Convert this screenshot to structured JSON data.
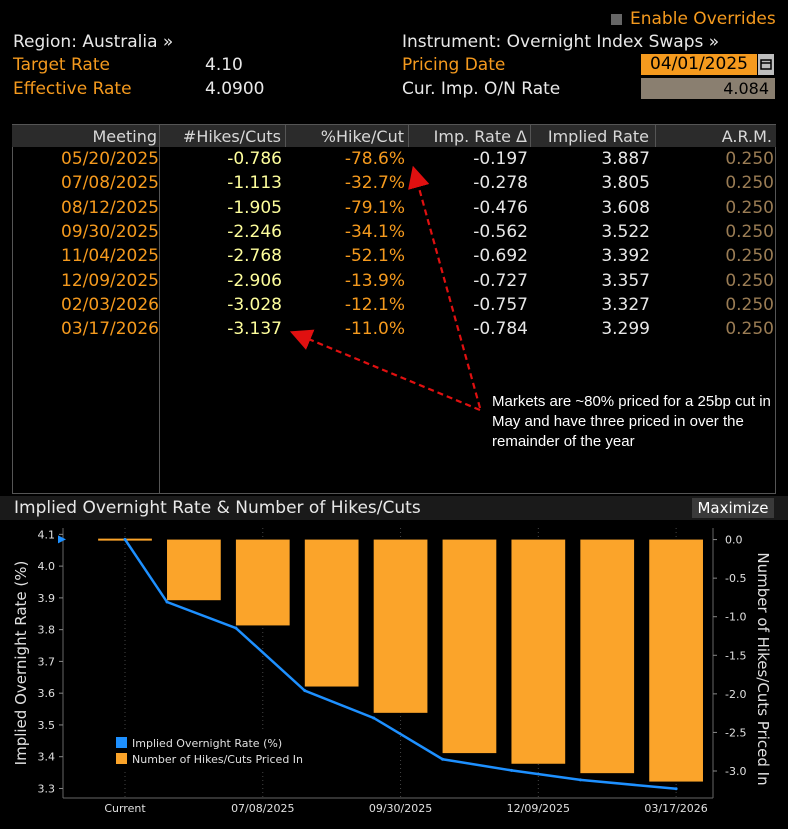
{
  "overrides": {
    "label": "Enable Overrides"
  },
  "region": {
    "label": "Region: Australia »"
  },
  "instrument": {
    "label": "Instrument: Overnight Index Swaps »"
  },
  "target_rate": {
    "label": "Target Rate",
    "value": "4.10"
  },
  "effective_rate": {
    "label": "Effective Rate",
    "value": "4.0900"
  },
  "pricing_date": {
    "label": "Pricing Date",
    "value": "04/01/2025"
  },
  "cur_imp": {
    "label": "Cur. Imp. O/N Rate",
    "value": "4.084"
  },
  "table": {
    "headers": [
      "Meeting",
      "#Hikes/Cuts",
      "%Hike/Cut",
      "Imp. Rate Δ",
      "Implied Rate",
      "A.R.M."
    ],
    "rows": [
      {
        "meeting": "05/20/2025",
        "hikes": "-0.786",
        "pct": "-78.6%",
        "delta": "-0.197",
        "implied": "3.887",
        "arm": "0.250"
      },
      {
        "meeting": "07/08/2025",
        "hikes": "-1.113",
        "pct": "-32.7%",
        "delta": "-0.278",
        "implied": "3.805",
        "arm": "0.250"
      },
      {
        "meeting": "08/12/2025",
        "hikes": "-1.905",
        "pct": "-79.1%",
        "delta": "-0.476",
        "implied": "3.608",
        "arm": "0.250"
      },
      {
        "meeting": "09/30/2025",
        "hikes": "-2.246",
        "pct": "-34.1%",
        "delta": "-0.562",
        "implied": "3.522",
        "arm": "0.250"
      },
      {
        "meeting": "11/04/2025",
        "hikes": "-2.768",
        "pct": "-52.1%",
        "delta": "-0.692",
        "implied": "3.392",
        "arm": "0.250"
      },
      {
        "meeting": "12/09/2025",
        "hikes": "-2.906",
        "pct": "-13.9%",
        "delta": "-0.727",
        "implied": "3.357",
        "arm": "0.250"
      },
      {
        "meeting": "02/03/2026",
        "hikes": "-3.028",
        "pct": "-12.1%",
        "delta": "-0.757",
        "implied": "3.327",
        "arm": "0.250"
      },
      {
        "meeting": "03/17/2026",
        "hikes": "-3.137",
        "pct": "-11.0%",
        "delta": "-0.784",
        "implied": "3.299",
        "arm": "0.250"
      }
    ]
  },
  "annotation": {
    "text": "Markets are ~80% priced for a 25bp cut in May and have three priced in over the remainder of the year"
  },
  "chart_section": {
    "title": "Implied Overnight Rate & Number of Hikes/Cuts",
    "maximize_label": "Maximize"
  },
  "colors": {
    "orange": "#f59a1e",
    "bar": "#fba42a",
    "line": "#1e90ff",
    "yellow": "#fefe9c",
    "arrow": "#e01010"
  },
  "chart_data": {
    "type": "bar",
    "categories": [
      "Current",
      "05/20/2025",
      "07/08/2025",
      "08/12/2025",
      "09/30/2025",
      "11/04/2025",
      "12/09/2025",
      "02/03/2026",
      "03/17/2026"
    ],
    "x_tick_labels": [
      "Current",
      "07/08/2025",
      "09/30/2025",
      "12/09/2025",
      "03/17/2026"
    ],
    "series": [
      {
        "name": "Implied Overnight Rate (%)",
        "type": "line",
        "axis": "left",
        "values": [
          4.084,
          3.887,
          3.805,
          3.608,
          3.522,
          3.392,
          3.357,
          3.327,
          3.299
        ]
      },
      {
        "name": "Number of Hikes/Cuts Priced In",
        "type": "bar",
        "axis": "right",
        "values": [
          0,
          -0.786,
          -1.113,
          -1.905,
          -2.246,
          -2.768,
          -2.906,
          -3.028,
          -3.137
        ]
      }
    ],
    "ylabel_left": "Implied Overnight Rate (%)",
    "ylabel_right": "Number of Hikes/Cuts Priced In",
    "ylim_left": [
      3.27,
      4.12
    ],
    "ylim_right": [
      -3.35,
      0.15
    ],
    "yticks_left": [
      "4.1",
      "4.0",
      "3.9",
      "3.8",
      "3.7",
      "3.6",
      "3.5",
      "3.4",
      "3.3"
    ],
    "yticks_right": [
      "0.0",
      "-0.5",
      "-1.0",
      "-1.5",
      "-2.0",
      "-2.5",
      "-3.0"
    ],
    "legend_position": "bottom-left"
  }
}
